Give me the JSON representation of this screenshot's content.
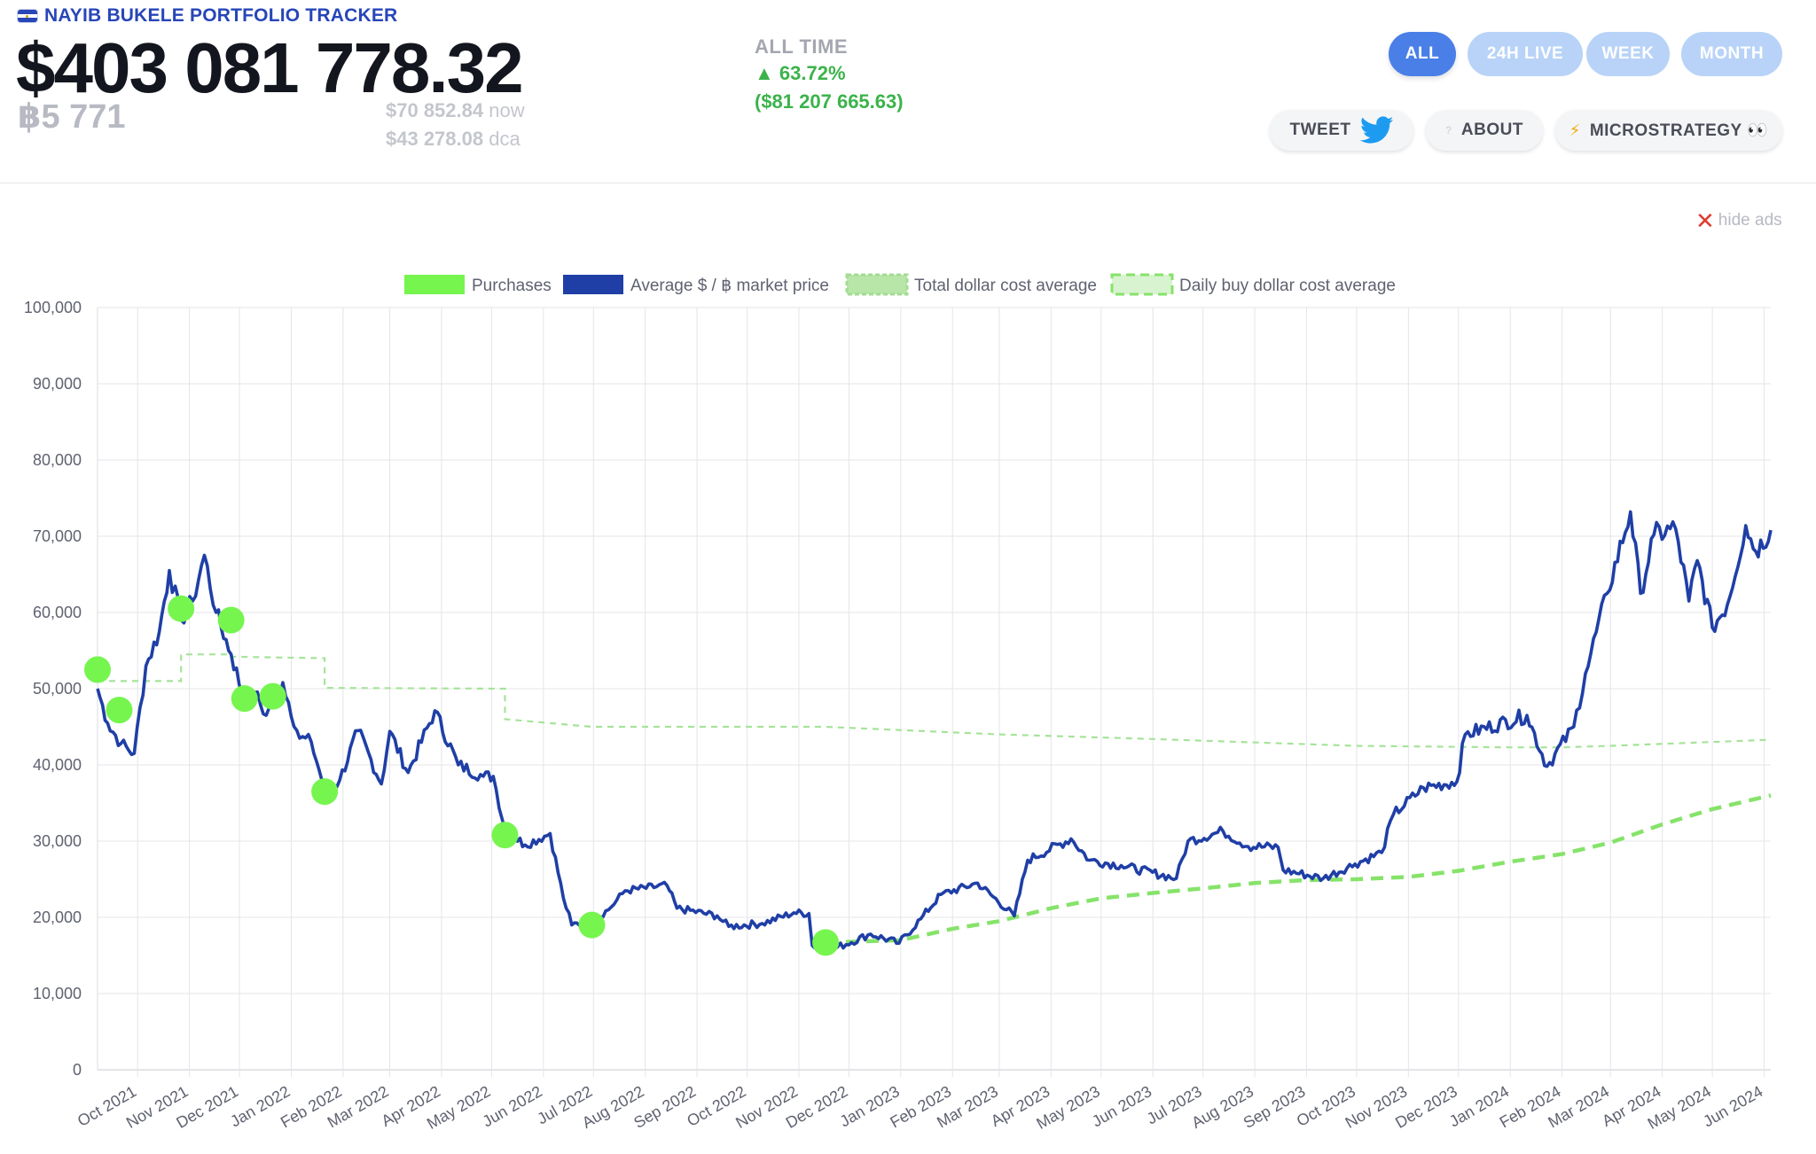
{
  "header": {
    "site_title": "NAYIB BUKELE PORTFOLIO TRACKER",
    "portfolio_value": "$403 081 778.32",
    "btc_holdings": "฿5 771",
    "price_now": "$70 852.84",
    "price_now_suffix": "now",
    "price_dca": "$43 278.08",
    "price_dca_suffix": "dca",
    "alltime_label": "ALL TIME",
    "alltime_pct": "▲ 63.72%",
    "alltime_usd": "($81 207 665.63)"
  },
  "timeframes": [
    {
      "label": "ALL",
      "active": true
    },
    {
      "label": "24H LIVE",
      "active": false
    },
    {
      "label": "WEEK",
      "active": false
    },
    {
      "label": "MONTH",
      "active": false
    }
  ],
  "actions": {
    "tweet_label": "TWEET",
    "about_label": "ABOUT",
    "microstrategy_label": "MICROSTRATEGY 👀"
  },
  "hide_ads_label": "hide ads",
  "colors": {
    "market_line": "#1f3fa6",
    "purchase_dot": "#76f54f",
    "total_dca": "#86e36a",
    "daily_dca": "#a6e39a",
    "timeframe_active": "#4a7fe8",
    "timeframe_inactive": "#b8d3f7",
    "positive": "#3bb34a",
    "brand": "#2746b8"
  },
  "chart_data": {
    "type": "line",
    "title": "",
    "xlabel": "",
    "ylabel": "",
    "ylim": [
      0,
      100000
    ],
    "xlim": [
      "2021-09-07",
      "2024-06-05"
    ],
    "grid": true,
    "legend_position": "top-center",
    "y_ticks": [
      "0",
      "10,000",
      "20,000",
      "30,000",
      "40,000",
      "50,000",
      "60,000",
      "70,000",
      "80,000",
      "90,000",
      "100,000"
    ],
    "x_ticks": [
      {
        "label": "Oct 2021",
        "date": "2021-10-01"
      },
      {
        "label": "Nov 2021",
        "date": "2021-11-01"
      },
      {
        "label": "Dec 2021",
        "date": "2021-12-01"
      },
      {
        "label": "Jan 2022",
        "date": "2022-01-01"
      },
      {
        "label": "Feb 2022",
        "date": "2022-02-01"
      },
      {
        "label": "Mar 2022",
        "date": "2022-03-01"
      },
      {
        "label": "Apr 2022",
        "date": "2022-04-01"
      },
      {
        "label": "May 2022",
        "date": "2022-05-01"
      },
      {
        "label": "Jun 2022",
        "date": "2022-06-01"
      },
      {
        "label": "Jul 2022",
        "date": "2022-07-01"
      },
      {
        "label": "Aug 2022",
        "date": "2022-08-01"
      },
      {
        "label": "Sep 2022",
        "date": "2022-09-01"
      },
      {
        "label": "Oct 2022",
        "date": "2022-10-01"
      },
      {
        "label": "Nov 2022",
        "date": "2022-11-01"
      },
      {
        "label": "Dec 2022",
        "date": "2022-12-01"
      },
      {
        "label": "Jan 2023",
        "date": "2023-01-01"
      },
      {
        "label": "Feb 2023",
        "date": "2023-02-01"
      },
      {
        "label": "Mar 2023",
        "date": "2023-03-01"
      },
      {
        "label": "Apr 2023",
        "date": "2023-04-01"
      },
      {
        "label": "May 2023",
        "date": "2023-05-01"
      },
      {
        "label": "Jun 2023",
        "date": "2023-06-01"
      },
      {
        "label": "Jul 2023",
        "date": "2023-07-01"
      },
      {
        "label": "Aug 2023",
        "date": "2023-08-01"
      },
      {
        "label": "Sep 2023",
        "date": "2023-09-01"
      },
      {
        "label": "Oct 2023",
        "date": "2023-10-01"
      },
      {
        "label": "Nov 2023",
        "date": "2023-11-01"
      },
      {
        "label": "Dec 2023",
        "date": "2023-12-01"
      },
      {
        "label": "Jan 2024",
        "date": "2024-01-01"
      },
      {
        "label": "Feb 2024",
        "date": "2024-02-01"
      },
      {
        "label": "Mar 2024",
        "date": "2024-03-01"
      },
      {
        "label": "Apr 2024",
        "date": "2024-04-01"
      },
      {
        "label": "May 2024",
        "date": "2024-05-01"
      },
      {
        "label": "Jun 2024",
        "date": "2024-06-01"
      }
    ],
    "series": [
      {
        "name": "Purchases",
        "kind": "points",
        "points": [
          {
            "x": "2021-09-07",
            "y": 52500
          },
          {
            "x": "2021-09-20",
            "y": 47200
          },
          {
            "x": "2021-10-27",
            "y": 60500
          },
          {
            "x": "2021-11-26",
            "y": 59000
          },
          {
            "x": "2021-12-04",
            "y": 48700
          },
          {
            "x": "2021-12-21",
            "y": 49000
          },
          {
            "x": "2022-01-21",
            "y": 36500
          },
          {
            "x": "2022-05-09",
            "y": 30800
          },
          {
            "x": "2022-06-30",
            "y": 19000
          },
          {
            "x": "2022-11-17",
            "y": 16700
          }
        ]
      },
      {
        "name": "Average $ / ฿ market price",
        "kind": "line",
        "points": [
          {
            "x": "2021-09-07",
            "y": 50000
          },
          {
            "x": "2021-09-13",
            "y": 45500
          },
          {
            "x": "2021-09-21",
            "y": 42800
          },
          {
            "x": "2021-09-29",
            "y": 41500
          },
          {
            "x": "2021-10-06",
            "y": 53000
          },
          {
            "x": "2021-10-14",
            "y": 57500
          },
          {
            "x": "2021-10-20",
            "y": 65500
          },
          {
            "x": "2021-10-27",
            "y": 59000
          },
          {
            "x": "2021-11-03",
            "y": 61500
          },
          {
            "x": "2021-11-10",
            "y": 67500
          },
          {
            "x": "2021-11-17",
            "y": 60000
          },
          {
            "x": "2021-11-26",
            "y": 54500
          },
          {
            "x": "2021-12-04",
            "y": 48500
          },
          {
            "x": "2021-12-10",
            "y": 49500
          },
          {
            "x": "2021-12-17",
            "y": 46500
          },
          {
            "x": "2021-12-27",
            "y": 50800
          },
          {
            "x": "2022-01-06",
            "y": 43500
          },
          {
            "x": "2022-01-13",
            "y": 43000
          },
          {
            "x": "2022-01-22",
            "y": 36000
          },
          {
            "x": "2022-01-30",
            "y": 38000
          },
          {
            "x": "2022-02-10",
            "y": 44500
          },
          {
            "x": "2022-02-24",
            "y": 37500
          },
          {
            "x": "2022-03-01",
            "y": 44400
          },
          {
            "x": "2022-03-12",
            "y": 39000
          },
          {
            "x": "2022-03-28",
            "y": 47100
          },
          {
            "x": "2022-04-11",
            "y": 40000
          },
          {
            "x": "2022-04-26",
            "y": 38500
          },
          {
            "x": "2022-05-02",
            "y": 38500
          },
          {
            "x": "2022-05-09",
            "y": 31500
          },
          {
            "x": "2022-05-21",
            "y": 29500
          },
          {
            "x": "2022-06-05",
            "y": 31000
          },
          {
            "x": "2022-06-13",
            "y": 22500
          },
          {
            "x": "2022-06-18",
            "y": 19000
          },
          {
            "x": "2022-06-30",
            "y": 19500
          },
          {
            "x": "2022-07-10",
            "y": 21000
          },
          {
            "x": "2022-07-20",
            "y": 23500
          },
          {
            "x": "2022-08-14",
            "y": 24200
          },
          {
            "x": "2022-08-20",
            "y": 21200
          },
          {
            "x": "2022-09-13",
            "y": 20200
          },
          {
            "x": "2022-09-20",
            "y": 18800
          },
          {
            "x": "2022-10-10",
            "y": 19200
          },
          {
            "x": "2022-10-29",
            "y": 20600
          },
          {
            "x": "2022-11-07",
            "y": 20500
          },
          {
            "x": "2022-11-09",
            "y": 16300
          },
          {
            "x": "2022-11-21",
            "y": 15800
          },
          {
            "x": "2022-12-14",
            "y": 17800
          },
          {
            "x": "2022-12-31",
            "y": 16600
          },
          {
            "x": "2023-01-13",
            "y": 19800
          },
          {
            "x": "2023-01-25",
            "y": 23000
          },
          {
            "x": "2023-02-16",
            "y": 24500
          },
          {
            "x": "2023-03-10",
            "y": 20200
          },
          {
            "x": "2023-03-18",
            "y": 27500
          },
          {
            "x": "2023-04-13",
            "y": 30300
          },
          {
            "x": "2023-04-24",
            "y": 27500
          },
          {
            "x": "2023-05-13",
            "y": 26800
          },
          {
            "x": "2023-06-15",
            "y": 25100
          },
          {
            "x": "2023-06-22",
            "y": 30000
          },
          {
            "x": "2023-07-13",
            "y": 31300
          },
          {
            "x": "2023-07-28",
            "y": 29300
          },
          {
            "x": "2023-08-15",
            "y": 29200
          },
          {
            "x": "2023-08-18",
            "y": 26200
          },
          {
            "x": "2023-09-11",
            "y": 25100
          },
          {
            "x": "2023-09-30",
            "y": 27000
          },
          {
            "x": "2023-10-16",
            "y": 28500
          },
          {
            "x": "2023-10-23",
            "y": 33500
          },
          {
            "x": "2023-11-10",
            "y": 37000
          },
          {
            "x": "2023-11-30",
            "y": 37800
          },
          {
            "x": "2023-12-05",
            "y": 44000
          },
          {
            "x": "2024-01-11",
            "y": 46500
          },
          {
            "x": "2024-01-23",
            "y": 39800
          },
          {
            "x": "2024-02-08",
            "y": 45000
          },
          {
            "x": "2024-02-15",
            "y": 52000
          },
          {
            "x": "2024-02-28",
            "y": 62500
          },
          {
            "x": "2024-03-13",
            "y": 73200
          },
          {
            "x": "2024-03-19",
            "y": 62500
          },
          {
            "x": "2024-03-27",
            "y": 70200
          },
          {
            "x": "2024-04-09",
            "y": 71000
          },
          {
            "x": "2024-04-17",
            "y": 61500
          },
          {
            "x": "2024-04-22",
            "y": 66800
          },
          {
            "x": "2024-05-01",
            "y": 58000
          },
          {
            "x": "2024-05-10",
            "y": 61000
          },
          {
            "x": "2024-05-21",
            "y": 71400
          },
          {
            "x": "2024-05-27",
            "y": 68000
          },
          {
            "x": "2024-06-05",
            "y": 70800
          }
        ]
      },
      {
        "name": "Total dollar cost average",
        "kind": "dashed-thick",
        "points": [
          {
            "x": "2022-11-17",
            "y": 16700
          },
          {
            "x": "2023-01-01",
            "y": 17000
          },
          {
            "x": "2023-02-01",
            "y": 18500
          },
          {
            "x": "2023-03-01",
            "y": 19500
          },
          {
            "x": "2023-04-01",
            "y": 21200
          },
          {
            "x": "2023-05-01",
            "y": 22500
          },
          {
            "x": "2023-06-01",
            "y": 23200
          },
          {
            "x": "2023-07-01",
            "y": 23800
          },
          {
            "x": "2023-08-01",
            "y": 24500
          },
          {
            "x": "2023-09-01",
            "y": 24900
          },
          {
            "x": "2023-10-01",
            "y": 25000
          },
          {
            "x": "2023-11-01",
            "y": 25300
          },
          {
            "x": "2023-12-01",
            "y": 26100
          },
          {
            "x": "2024-01-01",
            "y": 27300
          },
          {
            "x": "2024-02-01",
            "y": 28300
          },
          {
            "x": "2024-03-01",
            "y": 29800
          },
          {
            "x": "2024-04-01",
            "y": 32200
          },
          {
            "x": "2024-05-01",
            "y": 34200
          },
          {
            "x": "2024-06-05",
            "y": 36000
          }
        ]
      },
      {
        "name": "Daily buy dollar cost average",
        "kind": "dashed-thin",
        "points": [
          {
            "x": "2021-09-07",
            "y": 51000
          },
          {
            "x": "2021-10-27",
            "y": 51000
          },
          {
            "x": "2021-10-27",
            "y": 54500
          },
          {
            "x": "2021-11-26",
            "y": 54500
          },
          {
            "x": "2021-11-26",
            "y": 54200
          },
          {
            "x": "2022-01-21",
            "y": 54000
          },
          {
            "x": "2022-01-21",
            "y": 50100
          },
          {
            "x": "2022-05-09",
            "y": 50000
          },
          {
            "x": "2022-05-09",
            "y": 46000
          },
          {
            "x": "2022-06-30",
            "y": 45000
          },
          {
            "x": "2022-11-17",
            "y": 45000
          },
          {
            "x": "2023-03-01",
            "y": 44000
          },
          {
            "x": "2023-06-01",
            "y": 43400
          },
          {
            "x": "2023-10-01",
            "y": 42500
          },
          {
            "x": "2024-01-01",
            "y": 42300
          },
          {
            "x": "2024-02-01",
            "y": 42300
          },
          {
            "x": "2024-03-01",
            "y": 42500
          },
          {
            "x": "2024-06-05",
            "y": 43300
          }
        ]
      }
    ]
  }
}
